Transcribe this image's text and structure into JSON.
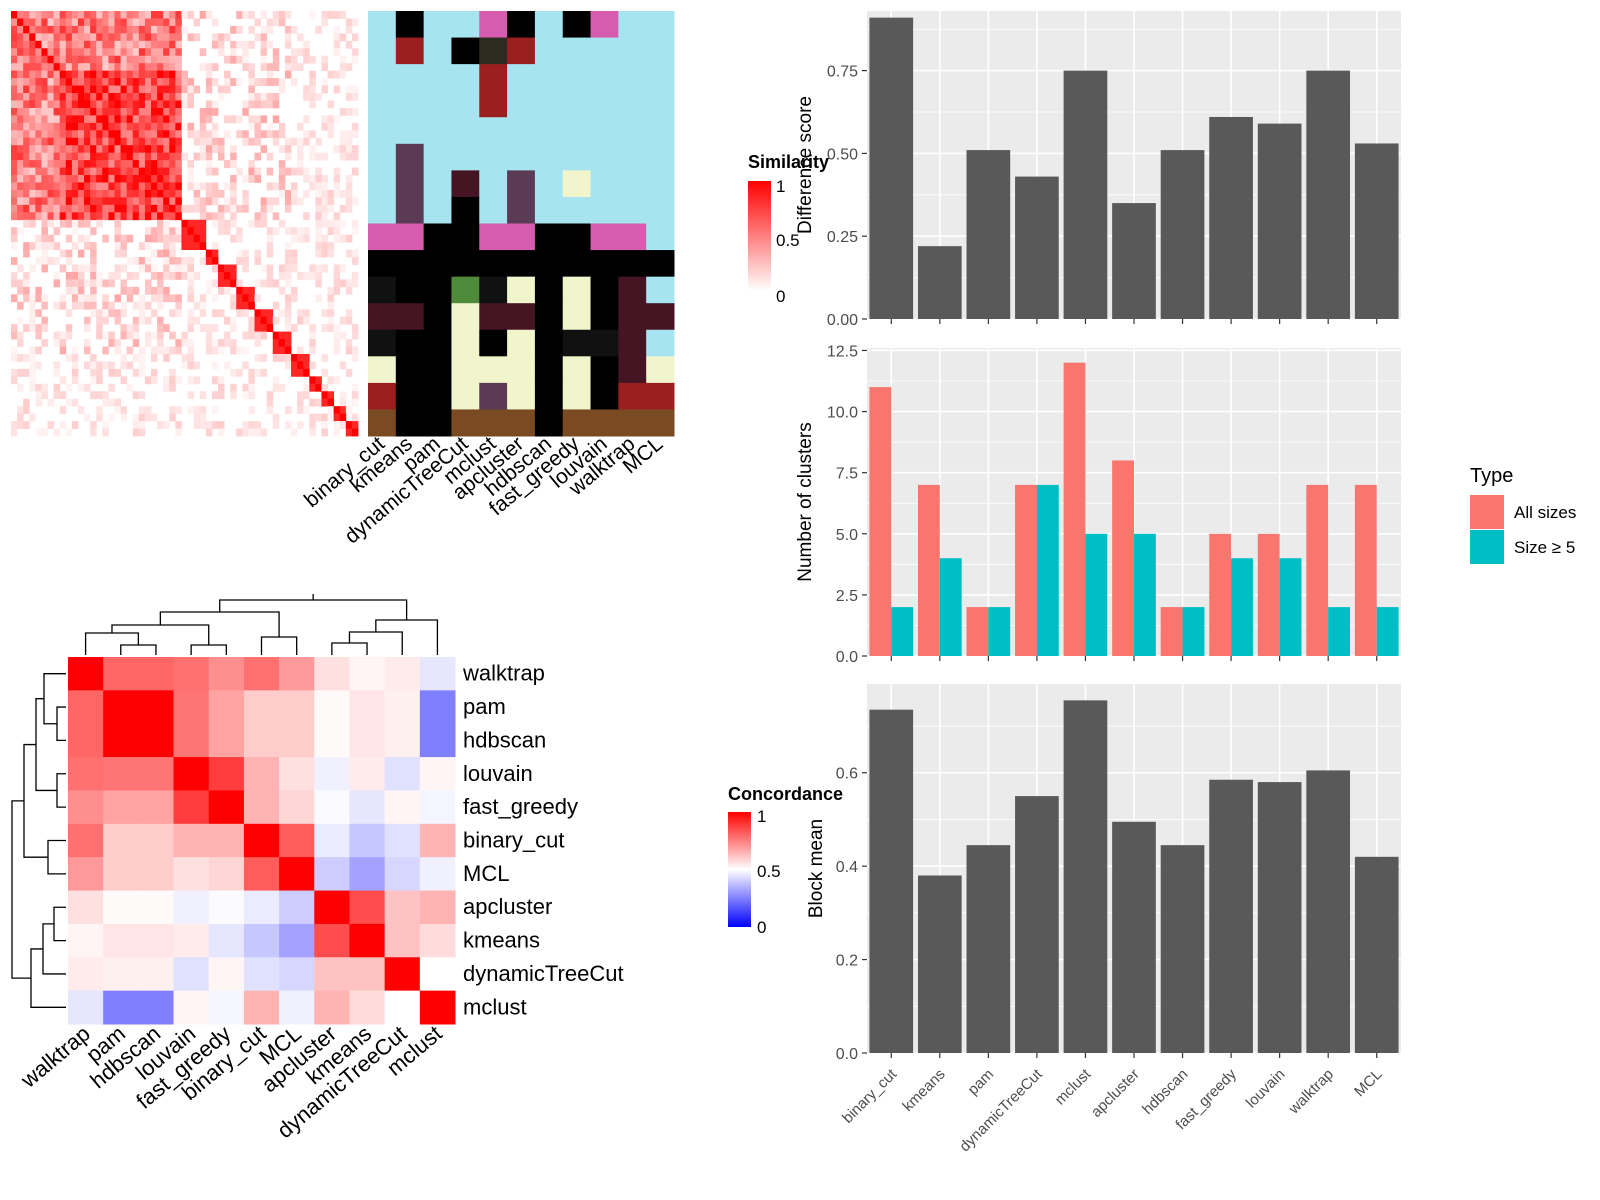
{
  "colors": {
    "similarity_low": "#ffffff",
    "similarity_high": "#ff0000",
    "concordance_low": "#0000ff",
    "concordance_mid": "#ffffff",
    "concordance_high": "#ff0000",
    "bar_fill": "#595959",
    "panel_bg": "#ebebeb",
    "grid": "#ffffff",
    "all_sizes": "#f8766d",
    "size_ge5": "#00bfc4"
  },
  "similarity_heatmap": {
    "legend_title": "Similarity",
    "legend_ticks": [
      "1",
      "0.5",
      "0"
    ]
  },
  "cluster_membership": {
    "methods": [
      "binary_cut",
      "kmeans",
      "pam",
      "dynamicTreeCut",
      "mclust",
      "apcluster",
      "hdbscan",
      "fast_greedy",
      "louvain",
      "walktrap",
      "MCL"
    ],
    "palette": [
      "#a6e5f0",
      "#000000",
      "#d65cb0",
      "#9b1f1f",
      "#5a3a55",
      "#2b2b1f",
      "#f0f5cc",
      "#4f8a3a",
      "#451524",
      "#7a4a22",
      "#111111"
    ]
  },
  "concordance_heatmap": {
    "legend_title": "Concordance",
    "legend_ticks": [
      "1",
      "0.5",
      "0"
    ],
    "row_labels": [
      "walktrap",
      "pam",
      "hdbscan",
      "louvain",
      "fast_greedy",
      "binary_cut",
      "MCL",
      "apcluster",
      "kmeans",
      "dynamicTreeCut",
      "mclust"
    ],
    "col_labels": [
      "walktrap",
      "pam",
      "hdbscan",
      "louvain",
      "fast_greedy",
      "binary_cut",
      "MCL",
      "apcluster",
      "kmeans",
      "dynamicTreeCut",
      "mclust"
    ],
    "values": [
      [
        1.0,
        0.8,
        0.8,
        0.78,
        0.72,
        0.78,
        0.7,
        0.56,
        0.52,
        0.54,
        0.45
      ],
      [
        0.8,
        1.0,
        1.0,
        0.77,
        0.68,
        0.6,
        0.6,
        0.51,
        0.55,
        0.53,
        0.25
      ],
      [
        0.8,
        1.0,
        1.0,
        0.77,
        0.68,
        0.6,
        0.6,
        0.51,
        0.55,
        0.53,
        0.25
      ],
      [
        0.78,
        0.77,
        0.77,
        1.0,
        0.88,
        0.65,
        0.56,
        0.47,
        0.54,
        0.44,
        0.52
      ],
      [
        0.72,
        0.68,
        0.68,
        0.88,
        1.0,
        0.65,
        0.58,
        0.49,
        0.45,
        0.52,
        0.48
      ],
      [
        0.78,
        0.6,
        0.6,
        0.65,
        0.65,
        1.0,
        0.82,
        0.46,
        0.39,
        0.44,
        0.65
      ],
      [
        0.7,
        0.6,
        0.6,
        0.56,
        0.58,
        0.82,
        1.0,
        0.4,
        0.32,
        0.42,
        0.47
      ],
      [
        0.56,
        0.51,
        0.51,
        0.47,
        0.49,
        0.46,
        0.4,
        1.0,
        0.85,
        0.62,
        0.65
      ],
      [
        0.52,
        0.55,
        0.55,
        0.54,
        0.45,
        0.39,
        0.32,
        0.85,
        1.0,
        0.62,
        0.57
      ],
      [
        0.54,
        0.53,
        0.53,
        0.44,
        0.52,
        0.44,
        0.42,
        0.62,
        0.62,
        1.0,
        0.5
      ],
      [
        0.45,
        0.25,
        0.25,
        0.52,
        0.48,
        0.65,
        0.47,
        0.65,
        0.57,
        0.5,
        1.0
      ]
    ]
  },
  "chart_data": [
    {
      "type": "bar",
      "categories": [
        "binary_cut",
        "kmeans",
        "pam",
        "dynamicTreeCut",
        "mclust",
        "apcluster",
        "hdbscan",
        "fast_greedy",
        "louvain",
        "walktrap",
        "MCL"
      ],
      "values": [
        0.91,
        0.22,
        0.51,
        0.43,
        0.75,
        0.35,
        0.51,
        0.61,
        0.59,
        0.75,
        0.53
      ],
      "title": "",
      "ylabel": "Difference score",
      "ylim": [
        0,
        0.93
      ],
      "yticks": [
        "0.00",
        "0.25",
        "0.50",
        "0.75"
      ],
      "grid": true
    },
    {
      "type": "bar",
      "categories": [
        "binary_cut",
        "kmeans",
        "pam",
        "dynamicTreeCut",
        "mclust",
        "apcluster",
        "hdbscan",
        "fast_greedy",
        "louvain",
        "walktrap",
        "MCL"
      ],
      "series": [
        {
          "name": "All sizes",
          "values": [
            11,
            7,
            2,
            7,
            12,
            8,
            2,
            5,
            5,
            7,
            7
          ]
        },
        {
          "name": "Size ≥ 5",
          "values": [
            2,
            4,
            2,
            7,
            5,
            5,
            2,
            4,
            4,
            2,
            2
          ]
        }
      ],
      "ylabel": "Number of clusters",
      "ylim": [
        0,
        12.6
      ],
      "yticks": [
        "0.0",
        "2.5",
        "5.0",
        "7.5",
        "10.0",
        "12.5"
      ],
      "legend_title": "Type",
      "legend_position": "right",
      "grid": true
    },
    {
      "type": "bar",
      "categories": [
        "binary_cut",
        "kmeans",
        "pam",
        "dynamicTreeCut",
        "mclust",
        "apcluster",
        "hdbscan",
        "fast_greedy",
        "louvain",
        "walktrap",
        "MCL"
      ],
      "values": [
        0.735,
        0.38,
        0.445,
        0.55,
        0.755,
        0.495,
        0.445,
        0.585,
        0.58,
        0.605,
        0.42
      ],
      "ylabel": "Block mean",
      "ylim": [
        0,
        0.79
      ],
      "yticks": [
        "0.0",
        "0.2",
        "0.4",
        "0.6"
      ],
      "grid": true
    }
  ]
}
